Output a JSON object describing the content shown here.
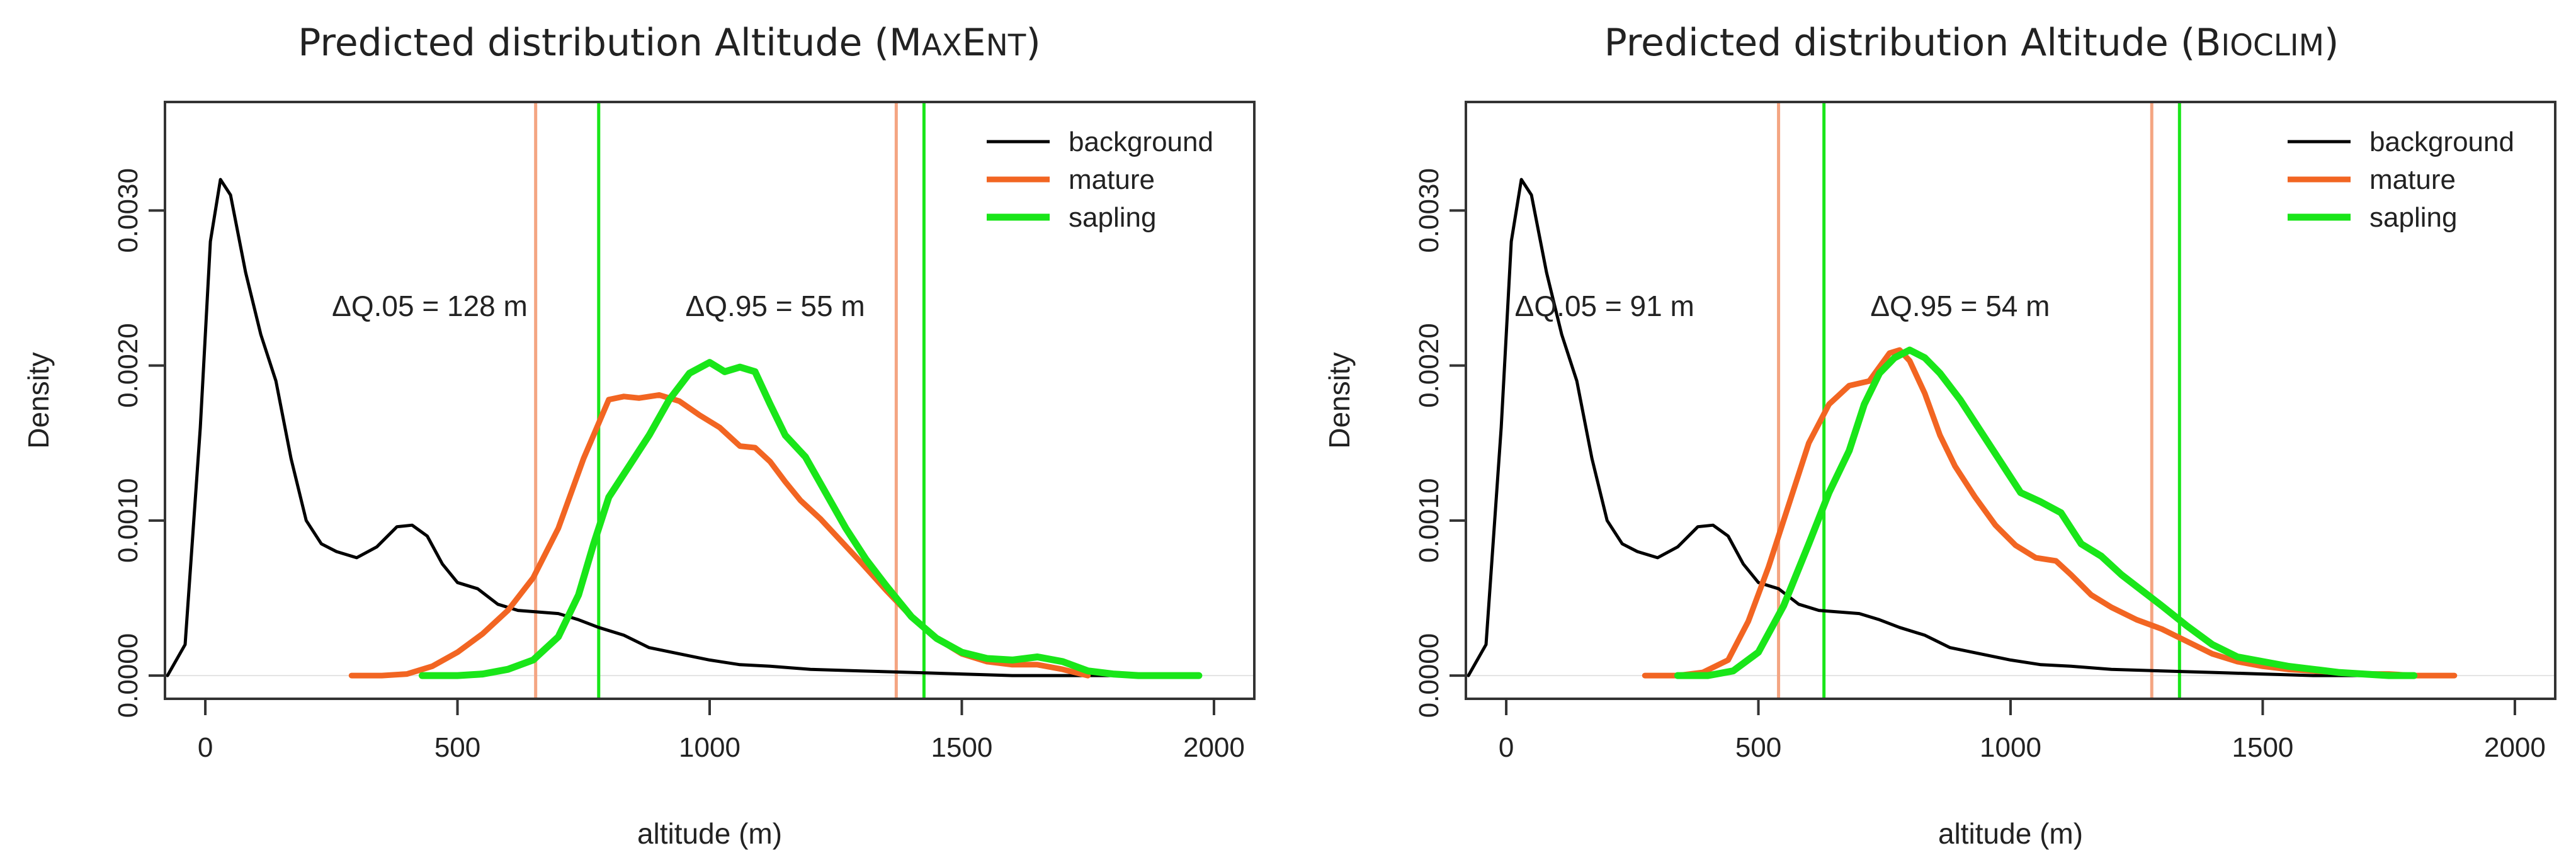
{
  "chart_data": [
    {
      "type": "line",
      "title": "Predicted distribution Altitude (MAXENT)",
      "title_main": "Predicted distribution Altitude (",
      "title_model_cap1": "M",
      "title_model_small1": "AX",
      "title_model_cap2": "E",
      "title_model_small2": "NT",
      "title_close": ")",
      "xlabel": "altitude (m)",
      "ylabel": "Density",
      "xlim": [
        -80,
        2080
      ],
      "ylim": [
        -0.00015,
        0.0037
      ],
      "xticks": [
        0,
        500,
        1000,
        1500,
        2000
      ],
      "xtick_labels": [
        "0",
        "500",
        "1000",
        "1500",
        "2000"
      ],
      "yticks": [
        0.0,
        0.001,
        0.002,
        0.003
      ],
      "ytick_labels": [
        "0.0000",
        "0.0010",
        "0.0020",
        "0.0030"
      ],
      "legend": [
        "background",
        "mature",
        "sapling"
      ],
      "legend_position": "top-right",
      "series": [
        {
          "name": "background",
          "color": "#000000",
          "x": [
            -75,
            -40,
            -10,
            10,
            30,
            50,
            80,
            110,
            140,
            170,
            200,
            230,
            260,
            300,
            340,
            380,
            410,
            440,
            470,
            500,
            540,
            580,
            620,
            660,
            700,
            740,
            780,
            830,
            880,
            940,
            1000,
            1060,
            1120,
            1200,
            1300,
            1400,
            1500,
            1600,
            1700,
            1800,
            1900,
            1970
          ],
          "values": [
            0.0,
            0.0002,
            0.0016,
            0.0028,
            0.0032,
            0.0031,
            0.0026,
            0.0022,
            0.0019,
            0.0014,
            0.001,
            0.00085,
            0.0008,
            0.00076,
            0.00083,
            0.00096,
            0.00097,
            0.0009,
            0.00072,
            0.0006,
            0.00056,
            0.00046,
            0.00042,
            0.00041,
            0.0004,
            0.00036,
            0.00031,
            0.00026,
            0.00018,
            0.00014,
            0.0001,
            7e-05,
            6e-05,
            4e-05,
            3e-05,
            2e-05,
            1e-05,
            0.0,
            0.0,
            0.0,
            0.0,
            0.0
          ]
        },
        {
          "name": "mature",
          "color": "#f26522",
          "x": [
            290,
            350,
            400,
            450,
            500,
            550,
            600,
            650,
            700,
            750,
            800,
            830,
            860,
            900,
            940,
            980,
            1020,
            1060,
            1090,
            1120,
            1150,
            1180,
            1220,
            1260,
            1300,
            1350,
            1400,
            1450,
            1500,
            1550,
            1600,
            1650,
            1700,
            1750
          ],
          "values": [
            0.0,
            0.0,
            1e-05,
            6e-05,
            0.00015,
            0.00027,
            0.00042,
            0.00063,
            0.00095,
            0.0014,
            0.00178,
            0.0018,
            0.00179,
            0.00181,
            0.00177,
            0.00168,
            0.0016,
            0.00148,
            0.00147,
            0.00138,
            0.00125,
            0.00113,
            0.00101,
            0.00087,
            0.00073,
            0.00055,
            0.00038,
            0.00024,
            0.00014,
            9e-05,
            7e-05,
            7e-05,
            4e-05,
            0.0
          ]
        },
        {
          "name": "sapling",
          "color": "#19e619",
          "x": [
            430,
            500,
            550,
            600,
            650,
            700,
            740,
            770,
            800,
            840,
            880,
            920,
            960,
            1000,
            1030,
            1060,
            1090,
            1120,
            1150,
            1190,
            1230,
            1270,
            1310,
            1350,
            1400,
            1450,
            1500,
            1550,
            1600,
            1650,
            1700,
            1750,
            1800,
            1850,
            1900,
            1970
          ],
          "values": [
            0.0,
            0.0,
            1e-05,
            4e-05,
            0.0001,
            0.00025,
            0.00052,
            0.00085,
            0.00115,
            0.00135,
            0.00155,
            0.00178,
            0.00195,
            0.00202,
            0.00196,
            0.00199,
            0.00196,
            0.00175,
            0.00155,
            0.00141,
            0.00118,
            0.00095,
            0.00075,
            0.00058,
            0.00038,
            0.00024,
            0.00015,
            0.00011,
            0.0001,
            0.00012,
            9e-05,
            3e-05,
            1e-05,
            0.0,
            0.0,
            0.0
          ]
        }
      ],
      "vlines": [
        {
          "x": 655,
          "color": "#f4a582",
          "series": "mature"
        },
        {
          "x": 1370,
          "color": "#f4a582",
          "series": "mature"
        },
        {
          "x": 780,
          "color": "#19e619",
          "series": "sapling"
        },
        {
          "x": 1425,
          "color": "#19e619",
          "series": "sapling"
        }
      ],
      "annotations": [
        {
          "text": "ΔQ.05 =  128 m",
          "x": 445,
          "y": 0.00232
        },
        {
          "text": "ΔQ.95 =  55 m",
          "x": 1130,
          "y": 0.00232
        }
      ]
    },
    {
      "type": "line",
      "title": "Predicted distribution Altitude (BIOCLIM)",
      "title_main": "Predicted distribution Altitude (",
      "title_model_cap1": "B",
      "title_model_small1": "IOCLIM",
      "title_model_cap2": "",
      "title_model_small2": "",
      "title_close": ")",
      "xlabel": "altitude (m)",
      "ylabel": "Density",
      "xlim": [
        -80,
        2080
      ],
      "ylim": [
        -0.00015,
        0.0037
      ],
      "xticks": [
        0,
        500,
        1000,
        1500,
        2000
      ],
      "xtick_labels": [
        "0",
        "500",
        "1000",
        "1500",
        "2000"
      ],
      "yticks": [
        0.0,
        0.001,
        0.002,
        0.003
      ],
      "ytick_labels": [
        "0.0000",
        "0.0010",
        "0.0020",
        "0.0030"
      ],
      "legend": [
        "background",
        "mature",
        "sapling"
      ],
      "legend_position": "top-right",
      "series": [
        {
          "name": "background",
          "color": "#000000",
          "x": [
            -75,
            -40,
            -10,
            10,
            30,
            50,
            80,
            110,
            140,
            170,
            200,
            230,
            260,
            300,
            340,
            380,
            410,
            440,
            470,
            500,
            540,
            580,
            620,
            660,
            700,
            740,
            780,
            830,
            880,
            940,
            1000,
            1060,
            1120,
            1200,
            1300,
            1400,
            1500,
            1600,
            1700,
            1800
          ],
          "values": [
            0.0,
            0.0002,
            0.0016,
            0.0028,
            0.0032,
            0.0031,
            0.0026,
            0.0022,
            0.0019,
            0.0014,
            0.001,
            0.00085,
            0.0008,
            0.00076,
            0.00083,
            0.00096,
            0.00097,
            0.0009,
            0.00072,
            0.0006,
            0.00056,
            0.00046,
            0.00042,
            0.00041,
            0.0004,
            0.00036,
            0.00031,
            0.00026,
            0.00018,
            0.00014,
            0.0001,
            7e-05,
            6e-05,
            4e-05,
            3e-05,
            2e-05,
            1e-05,
            0.0,
            0.0,
            0.0
          ]
        },
        {
          "name": "mature",
          "color": "#f26522",
          "x": [
            275,
            340,
            390,
            440,
            480,
            520,
            560,
            600,
            640,
            680,
            720,
            760,
            780,
            800,
            830,
            860,
            890,
            930,
            970,
            1010,
            1050,
            1090,
            1120,
            1160,
            1200,
            1250,
            1300,
            1350,
            1400,
            1450,
            1500,
            1550,
            1600,
            1650,
            1700,
            1750,
            1800,
            1880
          ],
          "values": [
            0.0,
            0.0,
            2e-05,
            0.0001,
            0.00035,
            0.0007,
            0.0011,
            0.0015,
            0.00175,
            0.00187,
            0.0019,
            0.00208,
            0.0021,
            0.00203,
            0.00182,
            0.00155,
            0.00135,
            0.00115,
            0.00097,
            0.00084,
            0.00076,
            0.00074,
            0.00065,
            0.00052,
            0.00044,
            0.00036,
            0.0003,
            0.00022,
            0.00014,
            9e-05,
            6e-05,
            4e-05,
            3e-05,
            2e-05,
            1e-05,
            1e-05,
            0.0,
            0.0
          ]
        },
        {
          "name": "sapling",
          "color": "#19e619",
          "x": [
            340,
            400,
            450,
            500,
            550,
            600,
            640,
            680,
            710,
            740,
            770,
            800,
            830,
            860,
            900,
            940,
            980,
            1020,
            1060,
            1100,
            1140,
            1180,
            1220,
            1260,
            1300,
            1350,
            1400,
            1450,
            1500,
            1550,
            1600,
            1650,
            1700,
            1750,
            1800
          ],
          "values": [
            0.0,
            0.0,
            3e-05,
            0.00015,
            0.00045,
            0.00085,
            0.00118,
            0.00145,
            0.00175,
            0.00195,
            0.00205,
            0.0021,
            0.00205,
            0.00195,
            0.00178,
            0.00158,
            0.00138,
            0.00118,
            0.00112,
            0.00105,
            0.00085,
            0.00077,
            0.00065,
            0.00055,
            0.00045,
            0.00032,
            0.0002,
            0.00012,
            9e-05,
            6e-05,
            4e-05,
            2e-05,
            1e-05,
            0.0,
            0.0
          ]
        }
      ],
      "vlines": [
        {
          "x": 540,
          "color": "#f4a582",
          "series": "mature"
        },
        {
          "x": 1280,
          "color": "#f4a582",
          "series": "mature"
        },
        {
          "x": 630,
          "color": "#19e619",
          "series": "sapling"
        },
        {
          "x": 1335,
          "color": "#19e619",
          "series": "sapling"
        }
      ],
      "annotations": [
        {
          "text": "ΔQ.05 =  91 m",
          "x": 195,
          "y": 0.00232
        },
        {
          "text": "ΔQ.95 =  54 m",
          "x": 900,
          "y": 0.00232
        }
      ]
    }
  ]
}
